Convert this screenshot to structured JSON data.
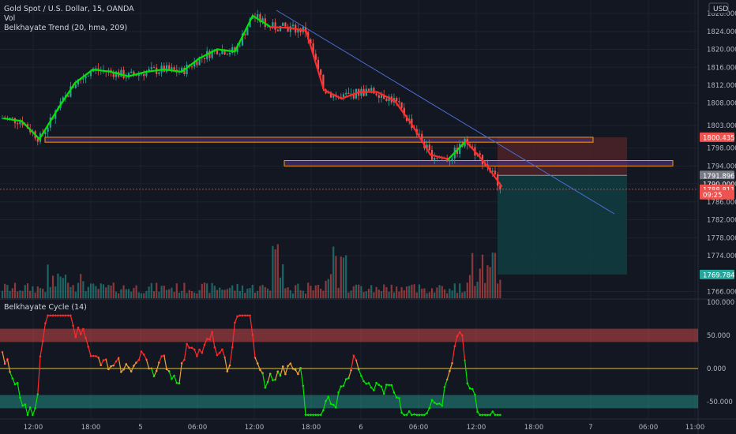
{
  "header": {
    "symbol": "Gold Spot / U.S. Dollar, 15, OANDA",
    "volume_label": "Vol",
    "indicator1": "Belkhayate Trend (20, hma, 209)",
    "indicator2": "Belkhayate Cycle  (14)",
    "currency": "USD"
  },
  "colors": {
    "background": "#131722",
    "grid": "#1e222d",
    "up": "#26a69a",
    "down": "#ef5350",
    "trend_up": "#00e600",
    "trend_down": "#ff2a2a",
    "trendline": "#4a6fd6",
    "zone_border": "#ff9800",
    "zone_fill": "#4a2e7a",
    "stop_zone": "#4d2327",
    "target_zone": "#113b3f"
  },
  "chart_data": [
    {
      "type": "candlestick",
      "title": "Gold Spot / U.S. Dollar, 15, OANDA",
      "y_ticks": [
        "1828.000",
        "1824.000",
        "1820.000",
        "1816.000",
        "1812.000",
        "1808.000",
        "1803.000",
        "1798.000",
        "1794.000",
        "1790.000",
        "1786.000",
        "1782.000",
        "1778.000",
        "1774.000",
        "1766.000"
      ],
      "ylim": [
        1764.5,
        1831
      ],
      "x_ticks": [
        "12:00",
        "18:00",
        "5",
        "06:00",
        "12:00",
        "18:00",
        "6",
        "06:00",
        "12:00",
        "18:00",
        "7",
        "06:00",
        "11:00"
      ],
      "trend_line_points": [
        [
          1804.6,
          "g"
        ],
        [
          1804.0,
          "g"
        ],
        [
          1800.0,
          "g"
        ],
        [
          1806.5,
          "g"
        ],
        [
          1812.5,
          "g"
        ],
        [
          1815.5,
          "g"
        ],
        [
          1815.0,
          "g"
        ],
        [
          1814.0,
          "g"
        ],
        [
          1815.0,
          "g"
        ],
        [
          1815.5,
          "g"
        ],
        [
          1815.0,
          "g"
        ],
        [
          1818.0,
          "g"
        ],
        [
          1820.0,
          "g"
        ],
        [
          1819.5,
          "g"
        ],
        [
          1827.5,
          "g"
        ],
        [
          1825.0,
          "r"
        ],
        [
          1824.8,
          "r"
        ],
        [
          1824.2,
          "r"
        ],
        [
          1811.0,
          "r"
        ],
        [
          1809.0,
          "r"
        ],
        [
          1810.5,
          "r"
        ],
        [
          1810.5,
          "r"
        ],
        [
          1808.5,
          "r"
        ],
        [
          1803.0,
          "r"
        ],
        [
          1796.5,
          "r"
        ],
        [
          1795.5,
          "g"
        ],
        [
          1799.5,
          "r"
        ],
        [
          1795.0,
          "r"
        ],
        [
          1789.5,
          "r"
        ]
      ],
      "price_labels": [
        {
          "value": "1800.435",
          "y": 1800.4,
          "color": "#ef5350"
        },
        {
          "value": "1791.896",
          "y": 1791.9,
          "color": "#787b86"
        },
        {
          "value": "1790.000",
          "y": 1790.0,
          "color": "#2a2e39"
        },
        {
          "value": "1788.811",
          "y": 1788.8,
          "color": "#ef5350"
        },
        {
          "value": "09:25",
          "y": 1787.6,
          "color": "#ef5350"
        },
        {
          "value": "1769.784",
          "y": 1769.8,
          "color": "#26a69a"
        }
      ],
      "zones": [
        {
          "name": "supply-zone-upper",
          "y_top": 1800.4,
          "y_bottom": 1799.3
        },
        {
          "name": "supply-zone-lower",
          "y_top": 1795.2,
          "y_bottom": 1794.0
        }
      ],
      "position": {
        "entry": 1791.9,
        "stop": 1800.4,
        "target": 1769.8
      }
    },
    {
      "type": "line",
      "title": "Belkhayate Cycle  (14)",
      "y_ticks": [
        "100.000",
        "50.000",
        "0.000",
        "-50.000"
      ],
      "ylim": [
        -75,
        100
      ],
      "bands": [
        {
          "from": 40,
          "to": 60,
          "color": "#ef5350"
        },
        {
          "from": -40,
          "to": -60,
          "color": "#26a69a"
        }
      ],
      "zero_line": 0
    }
  ]
}
